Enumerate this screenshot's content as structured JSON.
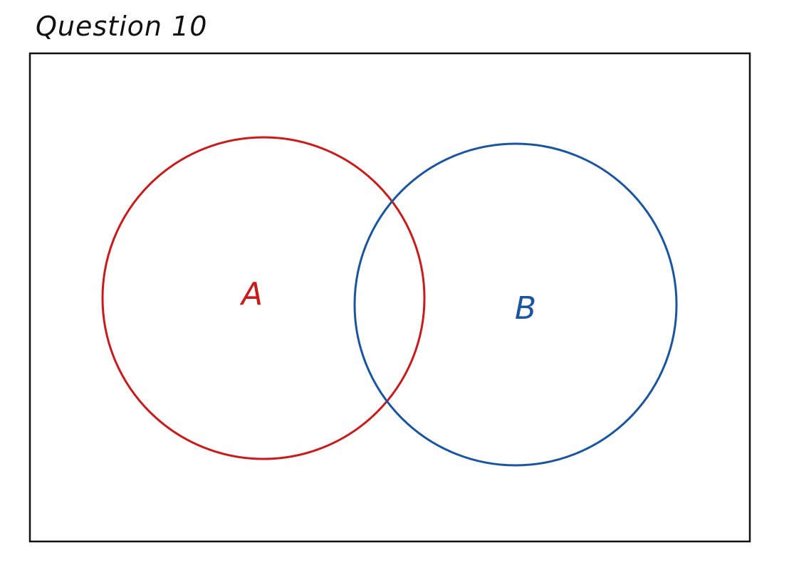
{
  "question": {
    "title": "Question 10"
  },
  "venn": {
    "universal_set_border_color": "#111111",
    "sets": [
      {
        "label": "A",
        "color": "#cc1a1a"
      },
      {
        "label": "B",
        "color": "#1a56a0"
      }
    ]
  }
}
